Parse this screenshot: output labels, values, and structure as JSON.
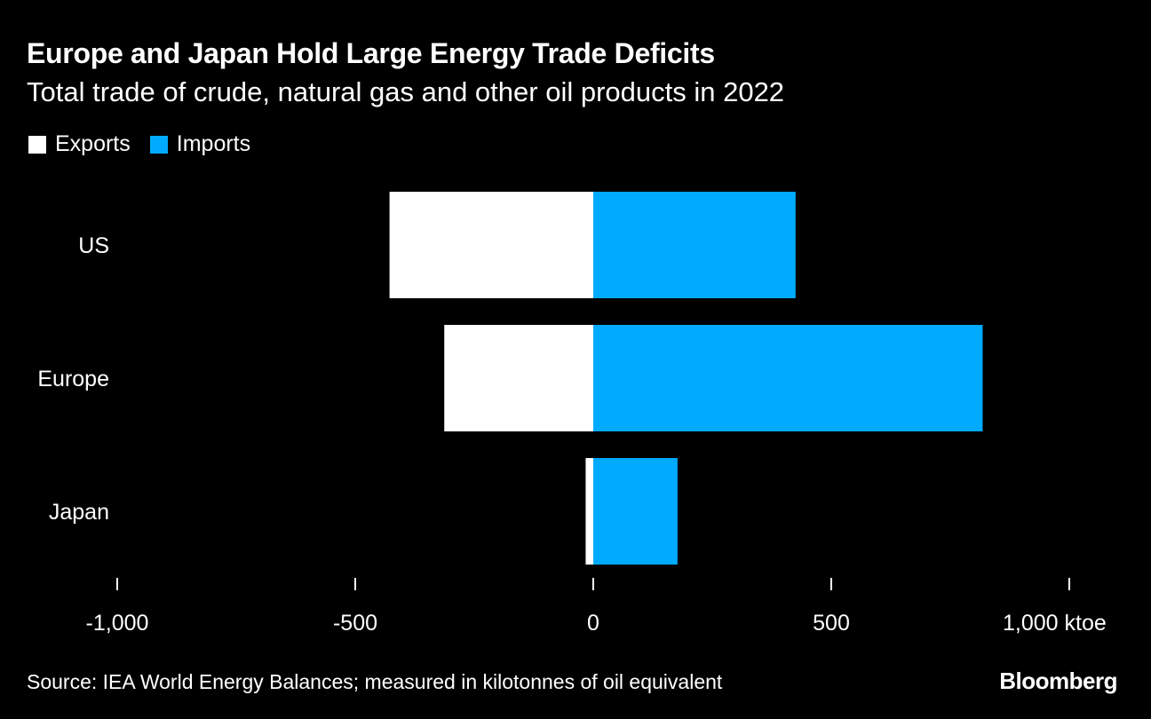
{
  "colors": {
    "background": "#000000",
    "exports": "#ffffff",
    "imports": "#00aaff",
    "text": "#ffffff"
  },
  "header": {
    "title": "Europe and Japan Hold Large Energy Trade Deficits",
    "subtitle": "Total trade of crude, natural gas and other oil products in 2022"
  },
  "legend": {
    "exports_label": "Exports",
    "imports_label": "Imports"
  },
  "footer": {
    "source": "Source: IEA World Energy Balances; measured in kilotonnes of oil equivalent",
    "brand": "Bloomberg"
  },
  "chart_data": {
    "type": "bar",
    "orientation": "horizontal",
    "title": "Europe and Japan Hold Large Energy Trade Deficits",
    "subtitle": "Total trade of crude, natural gas and other oil products in 2022",
    "categories": [
      "US",
      "Europe",
      "Japan"
    ],
    "series": [
      {
        "name": "Exports",
        "values": [
          -428,
          -313,
          -16
        ]
      },
      {
        "name": "Imports",
        "values": [
          425,
          818,
          177
        ]
      }
    ],
    "xlim": [
      -1000,
      1000
    ],
    "xticks": [
      -1000,
      -500,
      0,
      500,
      1000
    ],
    "xtick_labels": [
      "-1,000",
      "-500",
      "0",
      "500",
      "1,000 ktoe"
    ],
    "xlabel": "",
    "ylabel": "",
    "grid": false,
    "legend_position": "top-left"
  }
}
